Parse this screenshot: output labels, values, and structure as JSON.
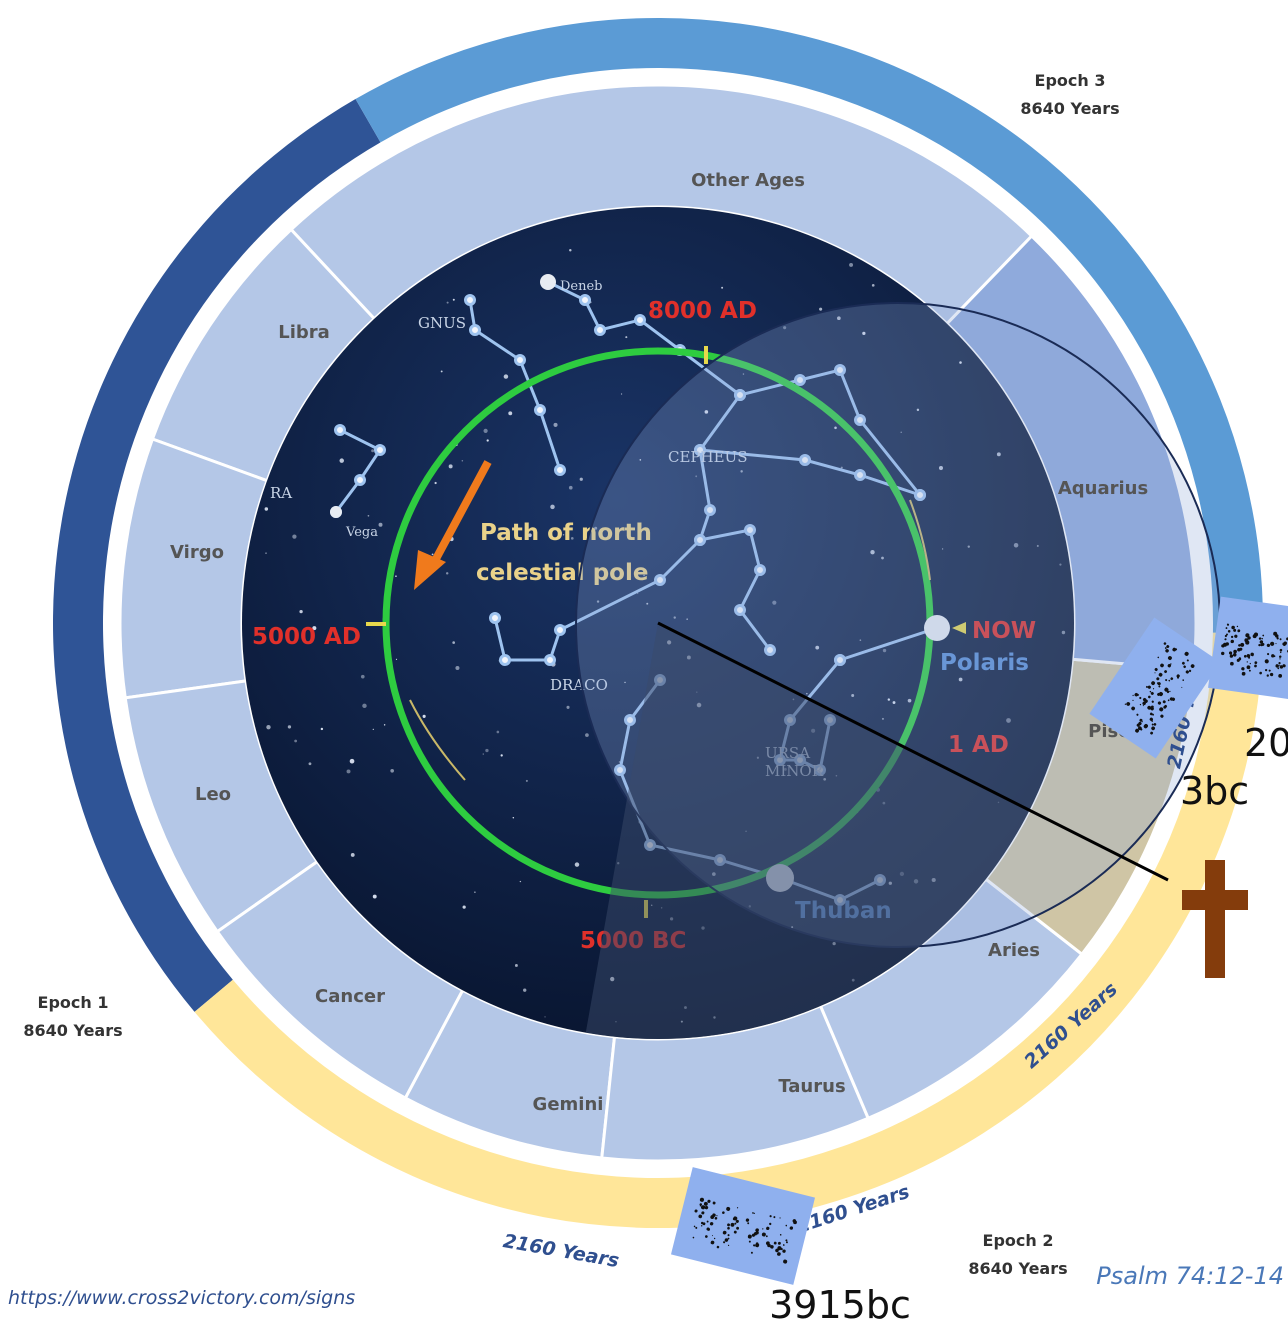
{
  "signs": {
    "other_ages": "Other Ages",
    "libra": "Libra",
    "virgo": "Virgo",
    "leo": "Leo",
    "cancer": "Cancer",
    "gemini": "Gemini",
    "taurus": "Taurus",
    "aries": "Aries",
    "pisces": "Pisces",
    "aquarius": "Aquarius"
  },
  "epochs": {
    "epoch1": {
      "name": "Epoch 1",
      "years": "8640 Years"
    },
    "epoch2": {
      "name": "Epoch 2",
      "years": "8640 Years"
    },
    "epoch3": {
      "name": "Epoch 3",
      "years": "8640 Years"
    }
  },
  "age_years": [
    "2160 Years",
    "2160 Years",
    "2160 Years",
    "2160 Years"
  ],
  "dates": {
    "d1": "3915bc",
    "d2": "3bc",
    "d3": "20"
  },
  "star_map": {
    "labels": {
      "ad8000": "8000 AD",
      "ad5000": "5000 AD",
      "bc5000": "5000 BC",
      "now": "NOW",
      "polaris": "Polaris",
      "ad1": "1 AD",
      "thuban": "Thuban",
      "path_line1": "Path of north",
      "path_line2": "celestial pole",
      "cepheus": "CEPHEUS",
      "draco": "DRACO",
      "ursa1": "URSA",
      "ursa2": "MINOR",
      "deneb": "Deneb",
      "vega": "Vega",
      "cygnus": "GNUS",
      "lyra": "RA"
    }
  },
  "footer": {
    "url": "https://www.cross2victory.com/signs",
    "psalm": "Psalm 74:12-14"
  },
  "colors": {
    "epoch1": "#2f5496",
    "epoch2": "#ffe699",
    "epoch3": "#5b9bd5",
    "sign_fill": "#b4c7e7",
    "sign_highlight": "#cfc5a5",
    "aquarius_fill": "#8faadc",
    "cross": "#843c0c",
    "sky": "#0c1d40",
    "pole_path": "#2ecc40"
  }
}
